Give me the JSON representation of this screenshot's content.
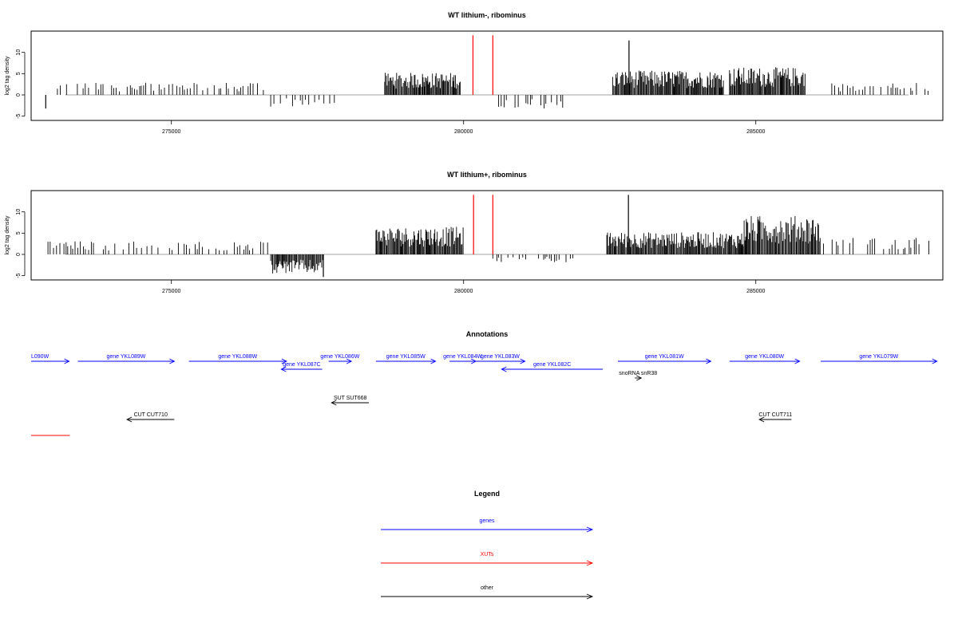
{
  "chart_data": [
    {
      "type": "bar",
      "title": "WT lithium-, ribominus",
      "ylabel": "log2 tag density",
      "xlim": [
        272600,
        288200
      ],
      "ylim": [
        -6,
        15
      ],
      "x_ticks": [
        275000,
        280000,
        285000
      ],
      "x_tick_labels": [
        "275000",
        "280000",
        "285000"
      ],
      "y_ticks": [
        -5,
        0,
        5,
        10
      ],
      "y_tick_labels": [
        "-5",
        "0",
        "5",
        "10"
      ],
      "regions": [
        {
          "start": 273050,
          "end": 276670,
          "strand": "+",
          "level": 2.3
        },
        {
          "start": 276700,
          "end": 277800,
          "strand": "-",
          "level": -2.2
        },
        {
          "start": 278650,
          "end": 279950,
          "strand": "+",
          "level": 4.2
        },
        {
          "start": 280600,
          "end": 281700,
          "strand": "-",
          "level": -2.8
        },
        {
          "start": 282550,
          "end": 284450,
          "strand": "+",
          "level": 4.6
        },
        {
          "start": 284550,
          "end": 285850,
          "strand": "+",
          "level": 5.2
        },
        {
          "start": 286300,
          "end": 288000,
          "strand": "+",
          "level": 2.3
        }
      ],
      "peaks": [
        {
          "x": 282830,
          "value": 12.8
        },
        {
          "x": 272850,
          "value": -3.2
        }
      ],
      "xut_markers": [
        {
          "x": 280160,
          "y1": 0,
          "y2": 14
        },
        {
          "x": 280500,
          "y1": 0,
          "y2": 14
        }
      ]
    },
    {
      "type": "bar",
      "title": "WT lithium+, ribominus",
      "ylabel": "log2 tag density",
      "xlim": [
        272600,
        288200
      ],
      "ylim": [
        -6,
        15
      ],
      "x_ticks": [
        275000,
        280000,
        285000
      ],
      "x_tick_labels": [
        "275000",
        "280000",
        "285000"
      ],
      "y_ticks": [
        -5,
        0,
        5,
        10
      ],
      "y_tick_labels": [
        "-5",
        "0",
        "5",
        "10"
      ],
      "regions": [
        {
          "start": 272850,
          "end": 276660,
          "strand": "+",
          "level": 2.5
        },
        {
          "start": 276700,
          "end": 277600,
          "strand": "-",
          "level": -3.6
        },
        {
          "start": 278500,
          "end": 280000,
          "strand": "+",
          "level": 5.2
        },
        {
          "start": 280500,
          "end": 281900,
          "strand": "-",
          "level": -1.5
        },
        {
          "start": 282450,
          "end": 284800,
          "strand": "+",
          "level": 4.2
        },
        {
          "start": 284800,
          "end": 286100,
          "strand": "+",
          "level": 7.3
        },
        {
          "start": 286100,
          "end": 288000,
          "strand": "+",
          "level": 3.2
        }
      ],
      "peaks": [
        {
          "x": 282820,
          "value": 14.0
        },
        {
          "x": 277600,
          "value": -5.3
        }
      ],
      "xut_markers": [
        {
          "x": 280170,
          "y1": 0,
          "y2": 14
        },
        {
          "x": 280500,
          "y1": 0,
          "y2": 14
        }
      ]
    }
  ],
  "annotations": {
    "title": "Annotations",
    "features": [
      {
        "label": "L090W",
        "start": 272600,
        "end": 273250,
        "strand": "+",
        "class": "gene",
        "row": 0
      },
      {
        "label": "gene YKL089W",
        "start": 273400,
        "end": 275050,
        "strand": "+",
        "class": "gene",
        "row": 0
      },
      {
        "label": "gene YKL088W",
        "start": 275300,
        "end": 276970,
        "strand": "+",
        "class": "gene",
        "row": 0
      },
      {
        "label": "gene YKL087C",
        "start": 276880,
        "end": 277580,
        "strand": "-",
        "class": "gene",
        "row": 1
      },
      {
        "label": "gene YKL086W",
        "start": 277690,
        "end": 278080,
        "strand": "+",
        "class": "gene",
        "row": 0
      },
      {
        "label": "gene YKL085W",
        "start": 278500,
        "end": 279520,
        "strand": "+",
        "class": "gene",
        "row": 0
      },
      {
        "label": "gene YKL084W",
        "start": 279760,
        "end": 280210,
        "strand": "+",
        "class": "gene",
        "row": 0
      },
      {
        "label": "gene YKL083W",
        "start": 280200,
        "end": 281050,
        "strand": "+",
        "class": "gene",
        "row": 0
      },
      {
        "label": "gene YKL082C",
        "start": 280650,
        "end": 282380,
        "strand": "-",
        "class": "gene",
        "row": 1
      },
      {
        "label": "gene YKL081W",
        "start": 282640,
        "end": 284230,
        "strand": "+",
        "class": "gene",
        "row": 0
      },
      {
        "label": "gene YKL080W",
        "start": 284550,
        "end": 285750,
        "strand": "+",
        "class": "gene",
        "row": 0
      },
      {
        "label": "gene YKL079W",
        "start": 286110,
        "end": 288100,
        "strand": "+",
        "class": "gene",
        "row": 0
      },
      {
        "label": "snoRNA snR38",
        "start": 282930,
        "end": 283040,
        "strand": "+",
        "class": "other",
        "row": 2
      },
      {
        "label": "SUT SUT668",
        "start": 277740,
        "end": 278380,
        "strand": "-",
        "class": "other",
        "row": 3
      },
      {
        "label": "CUT CUT710",
        "start": 274240,
        "end": 275050,
        "strand": "-",
        "class": "other",
        "row": 4
      },
      {
        "label": "CUT CUT711",
        "start": 285060,
        "end": 285610,
        "strand": "-",
        "class": "other",
        "row": 4
      },
      {
        "label": "",
        "start": 272600,
        "end": 273260,
        "strand": "none",
        "class": "xut",
        "row": 5
      }
    ]
  },
  "legend": {
    "title": "Legend",
    "items": [
      {
        "label": "genes",
        "color": "#0000ff"
      },
      {
        "label": "XUTs",
        "color": "#ff0000"
      },
      {
        "label": "other",
        "color": "#000000"
      }
    ]
  },
  "colors": {
    "gene": "#0000ff",
    "xut": "#ff0000",
    "other": "#000000",
    "axis": "#000000",
    "baseline": "#888888"
  }
}
